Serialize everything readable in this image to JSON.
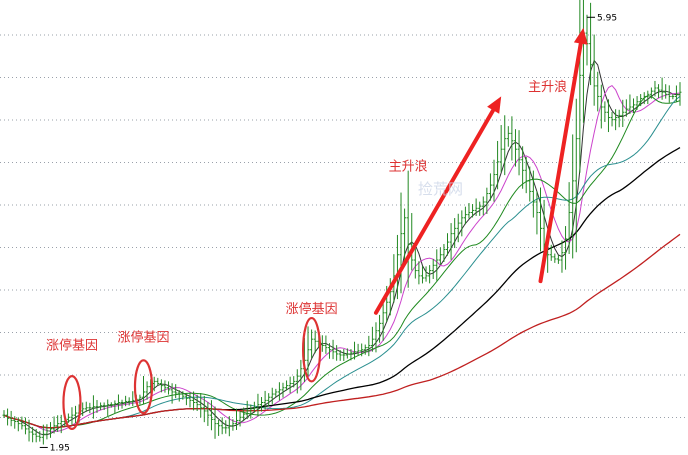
{
  "chart_data": {
    "type": "line",
    "title": "",
    "xlabel": "",
    "ylabel": "",
    "grid": true,
    "x_count": 190,
    "ylim": [
      1.85,
      6.0
    ],
    "price_labels": {
      "high": "5.95",
      "low": "1.95"
    },
    "price_extremes": {
      "high": {
        "x": 163,
        "y": 5.95
      },
      "low": {
        "x": 10,
        "y": 1.95
      }
    },
    "annotations": [
      {
        "text": "涨停基因",
        "x": 19,
        "y": 2.8
      },
      {
        "text": "涨停基因",
        "x": 39,
        "y": 2.88
      },
      {
        "text": "涨停基因",
        "x": 86,
        "y": 3.15
      },
      {
        "text": "主升浪",
        "x": 113,
        "y": 4.5
      },
      {
        "text": "主升浪",
        "x": 152,
        "y": 5.25
      }
    ],
    "highlight_ellipses": [
      {
        "x": 19,
        "y": [
          2.05,
          2.55
        ]
      },
      {
        "x": 39,
        "y": [
          2.2,
          2.7
        ]
      },
      {
        "x": 86,
        "y": [
          2.5,
          3.1
        ]
      }
    ],
    "trend_arrows": [
      {
        "from": {
          "x": 104,
          "y": 3.15
        },
        "to": {
          "x": 139,
          "y": 5.2
        }
      },
      {
        "from": {
          "x": 150,
          "y": 3.45
        },
        "to": {
          "x": 162,
          "y": 5.85
        }
      }
    ],
    "watermark": "捡荒网",
    "colors": {
      "candle": "#228822",
      "ma5": "#333333",
      "ma10": "#cc44cc",
      "ma20": "#1f8a1f",
      "ma30": "#2a8f8f",
      "ma60": "#000000",
      "ma120": "#c02020",
      "annotation": "#dd3333",
      "arrow": "#ee2222",
      "grid": "#9aa0aa"
    },
    "series": [
      {
        "name": "",
        "key": "close",
        "values": [
          2.18,
          2.15,
          2.13,
          2.12,
          2.1,
          2.08,
          2.05,
          2.02,
          2.0,
          1.98,
          1.97,
          2.0,
          2.03,
          2.05,
          2.08,
          2.1,
          2.12,
          2.14,
          2.16,
          2.18,
          2.2,
          2.22,
          2.24,
          2.25,
          2.25,
          2.26,
          2.26,
          2.27,
          2.27,
          2.28,
          2.28,
          2.29,
          2.3,
          2.3,
          2.31,
          2.31,
          2.32,
          2.33,
          2.35,
          2.4,
          2.45,
          2.48,
          2.5,
          2.48,
          2.46,
          2.44,
          2.42,
          2.4,
          2.39,
          2.38,
          2.36,
          2.34,
          2.32,
          2.3,
          2.28,
          2.25,
          2.22,
          2.18,
          2.14,
          2.1,
          2.08,
          2.06,
          2.06,
          2.08,
          2.1,
          2.13,
          2.16,
          2.19,
          2.22,
          2.24,
          2.25,
          2.28,
          2.3,
          2.32,
          2.35,
          2.38,
          2.4,
          2.42,
          2.44,
          2.46,
          2.48,
          2.5,
          2.55,
          2.62,
          2.7,
          2.8,
          2.9,
          2.88,
          2.86,
          2.84,
          2.82,
          2.8,
          2.78,
          2.76,
          2.75,
          2.75,
          2.76,
          2.77,
          2.78,
          2.79,
          2.8,
          2.82,
          2.84,
          2.9,
          2.98,
          3.05,
          3.15,
          3.25,
          3.35,
          3.5,
          3.7,
          3.9,
          4.05,
          3.8,
          3.65,
          3.55,
          3.5,
          3.48,
          3.5,
          3.55,
          3.6,
          3.65,
          3.7,
          3.75,
          3.82,
          3.9,
          3.95,
          4.0,
          4.05,
          4.08,
          4.1,
          4.12,
          4.14,
          4.16,
          4.2,
          4.28,
          4.36,
          4.46,
          4.58,
          4.7,
          4.8,
          4.85,
          4.78,
          4.7,
          4.6,
          4.5,
          4.4,
          4.3,
          4.2,
          4.1,
          3.95,
          3.8,
          3.7,
          3.68,
          3.66,
          3.65,
          3.72,
          3.85,
          4.1,
          4.4,
          4.8,
          5.4,
          5.8,
          5.7,
          5.5,
          5.3,
          5.2,
          5.1,
          5.05,
          5.0,
          4.98,
          5.0,
          5.02,
          5.05,
          5.08,
          5.1,
          5.12,
          5.15,
          5.18,
          5.2,
          5.22,
          5.25,
          5.28,
          5.26,
          5.24,
          5.22,
          5.2,
          5.2,
          5.22,
          5.24,
          5.25,
          5.24,
          5.23,
          5.22
        ]
      }
    ]
  }
}
